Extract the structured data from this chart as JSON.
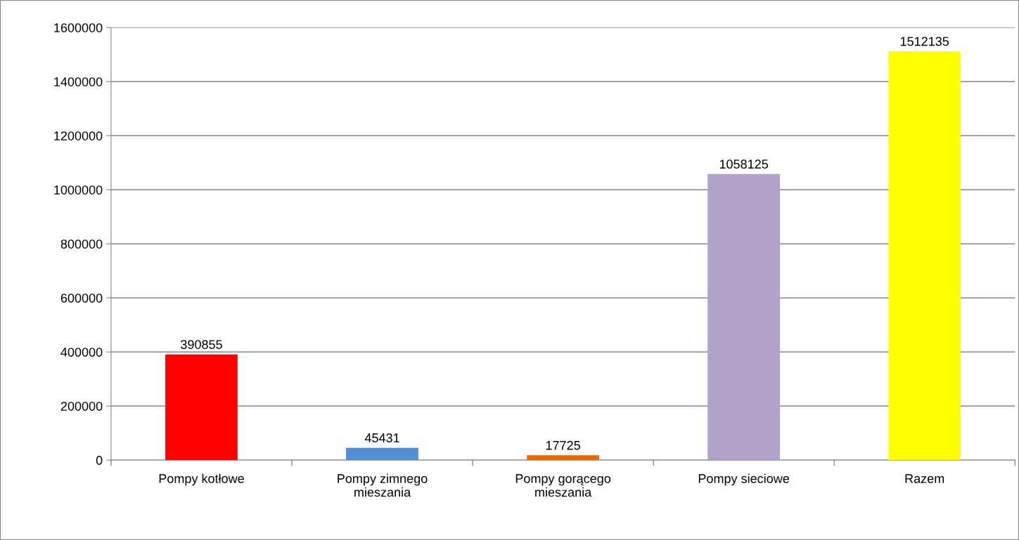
{
  "chart_data": {
    "type": "bar",
    "categories": [
      "Pompy kotłowe",
      "Pompy zimnego\nmieszania",
      "Pompy gorącego\nmieszania",
      "Pompy sieciowe",
      "Razem"
    ],
    "values": [
      390855,
      45431,
      17725,
      1058125,
      1512135
    ],
    "colors": [
      "#ff0000",
      "#558ed5",
      "#e46c0a",
      "#b3a2c7",
      "#ffff00"
    ],
    "ylim": [
      0,
      1600000
    ],
    "yticks": [
      0,
      200000,
      400000,
      600000,
      800000,
      1000000,
      1200000,
      1400000,
      1600000
    ],
    "grid": "y",
    "data_labels": true
  }
}
